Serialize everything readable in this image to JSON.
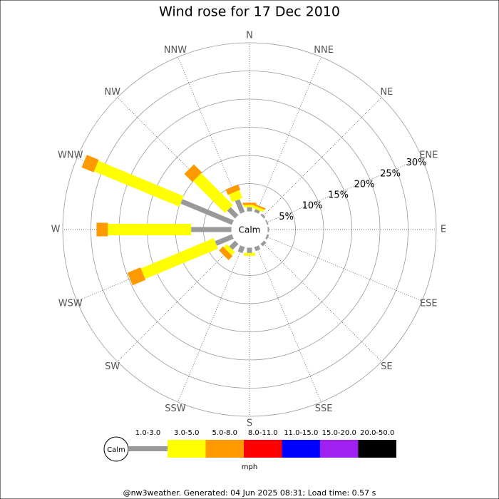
{
  "chart_data": {
    "type": "windrose",
    "title": "Wind rose for 17 Dec 2010",
    "categories": [
      "N",
      "NNE",
      "NE",
      "ENE",
      "E",
      "ESE",
      "SE",
      "SSE",
      "S",
      "SSW",
      "SW",
      "WSW",
      "W",
      "WNW",
      "NW",
      "NNW"
    ],
    "center_label": "Calm",
    "rlim": [
      0,
      30
    ],
    "rticks": [
      {
        "value": 5,
        "label": "5%"
      },
      {
        "value": 10,
        "label": "10%"
      },
      {
        "value": 15,
        "label": "15%"
      },
      {
        "value": 20,
        "label": "20%"
      },
      {
        "value": 25,
        "label": "25%"
      },
      {
        "value": 30,
        "label": "30%"
      }
    ],
    "series": [
      {
        "name": "1.0-3.0",
        "color": "#999999",
        "values": [
          0.8,
          0.6,
          0.4,
          0.3,
          0.3,
          0.4,
          0.6,
          0.8,
          1,
          1.2,
          1.5,
          3.3,
          7.2,
          9.9,
          2,
          2.5
        ]
      },
      {
        "name": "3.0-5.0",
        "color": "#ffff00",
        "values": [
          0.4,
          0.5,
          0,
          0,
          0,
          0,
          0,
          0,
          0.5,
          0,
          0.8,
          14,
          14.8,
          16.4,
          8,
          1.5
        ]
      },
      {
        "name": "5.0-8.0",
        "color": "#ff9900",
        "values": [
          0.4,
          0.3,
          0,
          0,
          0,
          0,
          0,
          0,
          0,
          0,
          1,
          2.5,
          2,
          2.3,
          2,
          1
        ]
      },
      {
        "name": "8.0-11.0",
        "color": "#ff0000",
        "values": [
          0,
          0,
          0,
          0,
          0,
          0,
          0,
          0,
          0,
          0,
          0,
          0,
          0,
          0,
          0,
          0
        ]
      },
      {
        "name": "11.0-15.0",
        "color": "#0000ff",
        "values": [
          0,
          0,
          0,
          0,
          0,
          0,
          0,
          0,
          0,
          0,
          0,
          0,
          0,
          0,
          0,
          0
        ]
      },
      {
        "name": "15.0-20.0",
        "color": "#a020f0",
        "values": [
          0,
          0,
          0,
          0,
          0,
          0,
          0,
          0,
          0,
          0,
          0,
          0,
          0,
          0,
          0,
          0
        ]
      },
      {
        "name": "20.0-50.0",
        "color": "#000000",
        "values": [
          0,
          0,
          0,
          0,
          0,
          0,
          0,
          0,
          0,
          0,
          0,
          0,
          0,
          0,
          0,
          0
        ]
      }
    ],
    "legend_unit": "mph",
    "footer": "@nw3weather. Generated: 04 Jun 2025 08:31; Load time: 0.57 s"
  }
}
